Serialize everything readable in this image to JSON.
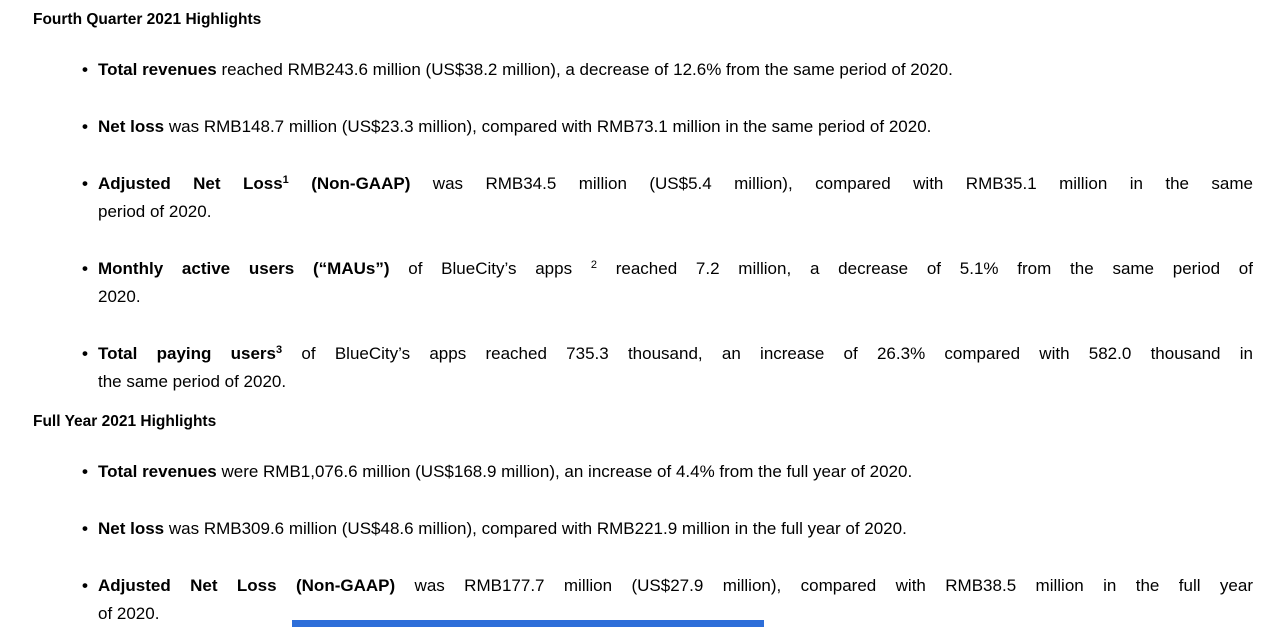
{
  "page": {
    "background_color": "#ffffff",
    "text_color": "#000000",
    "partial_bar_color": "#2d6ed9"
  },
  "document": {
    "sections": [
      {
        "heading": "Fourth Quarter 2021 Highlights",
        "bullets": [
          {
            "lines": [
              {
                "segments": [
                  {
                    "text": "Total revenues",
                    "bold": true,
                    "sup": false
                  },
                  {
                    "text": " reached RMB243.6 million (US$38.2 million), a decrease of 12.6% from the same period of 2020.",
                    "bold": false,
                    "sup": false
                  }
                ]
              }
            ]
          },
          {
            "lines": [
              {
                "segments": [
                  {
                    "text": "Net loss",
                    "bold": true,
                    "sup": false
                  },
                  {
                    "text": " was RMB148.7 million (US$23.3 million), compared with RMB73.1 million in the same period of 2020.",
                    "bold": false,
                    "sup": false
                  }
                ]
              }
            ]
          },
          {
            "lines": [
              {
                "segments": [
                  {
                    "text": "Adjusted Net Loss",
                    "bold": true,
                    "sup": false
                  },
                  {
                    "text": "1",
                    "bold": true,
                    "sup": true
                  },
                  {
                    "text": " (Non-GAAP)",
                    "bold": true,
                    "sup": false
                  },
                  {
                    "text": " was RMB34.5 million (US$5.4 million), compared with RMB35.1 million in the same",
                    "bold": false,
                    "sup": false
                  }
                ]
              },
              {
                "segments": [
                  {
                    "text": "period of 2020.",
                    "bold": false,
                    "sup": false
                  }
                ]
              }
            ]
          },
          {
            "lines": [
              {
                "segments": [
                  {
                    "text": "Monthly active users (“MAUs”)",
                    "bold": true,
                    "sup": false
                  },
                  {
                    "text": " of BlueCity’s apps ",
                    "bold": false,
                    "sup": false
                  },
                  {
                    "text": "2",
                    "bold": false,
                    "sup": true
                  },
                  {
                    "text": " reached 7.2 million, a decrease of 5.1% from the same period of",
                    "bold": false,
                    "sup": false
                  }
                ]
              },
              {
                "segments": [
                  {
                    "text": "2020.",
                    "bold": false,
                    "sup": false
                  }
                ]
              }
            ]
          },
          {
            "lines": [
              {
                "segments": [
                  {
                    "text": "Total paying users",
                    "bold": true,
                    "sup": false
                  },
                  {
                    "text": "3",
                    "bold": true,
                    "sup": true
                  },
                  {
                    "text": " of BlueCity’s apps reached 735.3 thousand, an increase of 26.3% compared with 582.0 thousand in",
                    "bold": false,
                    "sup": false
                  }
                ]
              },
              {
                "segments": [
                  {
                    "text": "the same period of 2020.",
                    "bold": false,
                    "sup": false
                  }
                ]
              }
            ]
          }
        ]
      },
      {
        "heading": "Full Year 2021 Highlights",
        "bullets": [
          {
            "lines": [
              {
                "segments": [
                  {
                    "text": "Total revenues",
                    "bold": true,
                    "sup": false
                  },
                  {
                    "text": " were RMB1,076.6 million (US$168.9 million), an increase of 4.4% from the full year of 2020.",
                    "bold": false,
                    "sup": false
                  }
                ]
              }
            ]
          },
          {
            "lines": [
              {
                "segments": [
                  {
                    "text": "Net loss",
                    "bold": true,
                    "sup": false
                  },
                  {
                    "text": " was RMB309.6 million (US$48.6 million), compared with RMB221.9 million in the full year of 2020.",
                    "bold": false,
                    "sup": false
                  }
                ]
              }
            ]
          },
          {
            "lines": [
              {
                "segments": [
                  {
                    "text": "Adjusted Net Loss (Non-GAAP)",
                    "bold": true,
                    "sup": false
                  },
                  {
                    "text": " was RMB177.7 million (US$27.9 million), compared with RMB38.5 million in the full year",
                    "bold": false,
                    "sup": false
                  }
                ]
              },
              {
                "segments": [
                  {
                    "text": "of 2020.",
                    "bold": false,
                    "sup": false
                  }
                ]
              }
            ]
          }
        ]
      }
    ]
  }
}
